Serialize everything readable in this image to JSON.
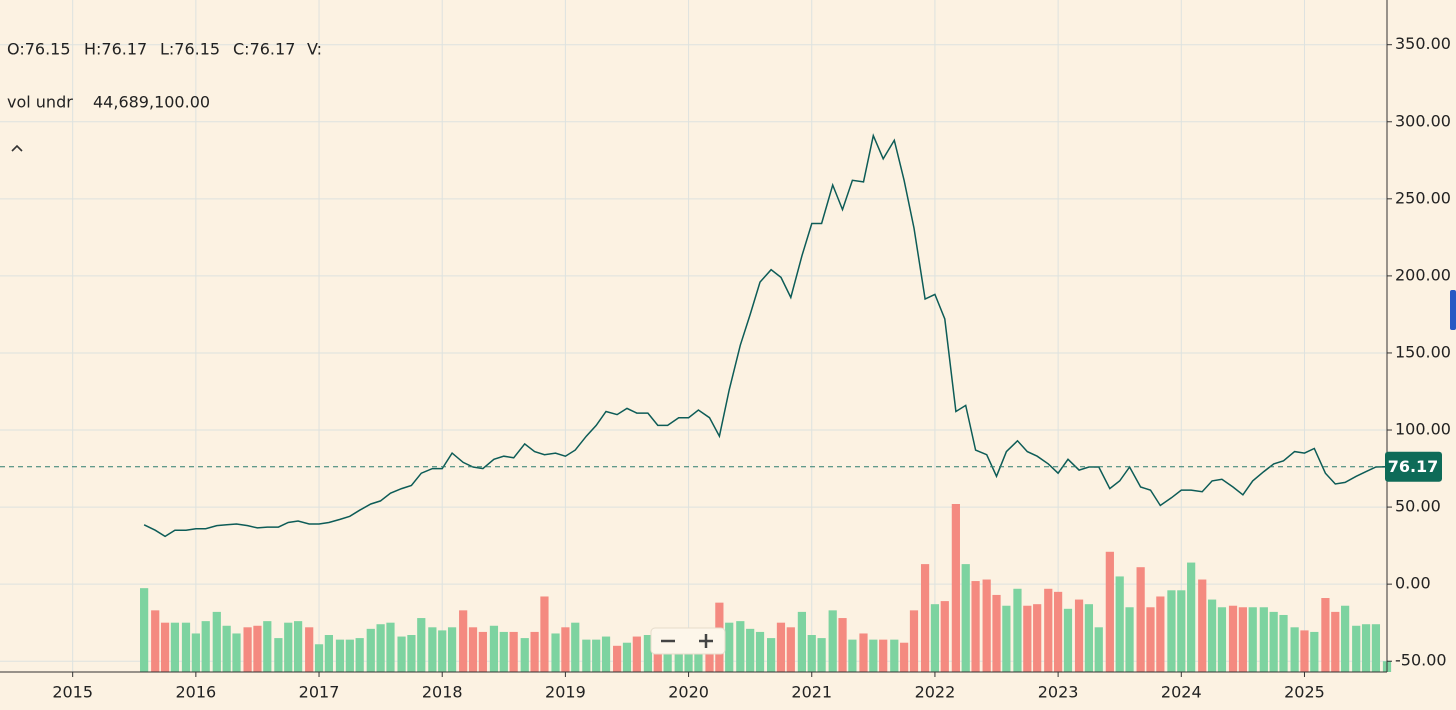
{
  "chart_data": {
    "type": "line",
    "ohlc_labels": [
      "O:76.15",
      "H:76.17",
      "L:76.15",
      "C:76.17",
      "V:"
    ],
    "volume_label": "vol undr",
    "volume_value": "44,689,100.00",
    "last_price": 76.17,
    "grid": true,
    "xlim": [
      2014.41,
      2025.67
    ],
    "xticks": [
      2015,
      2016,
      2017,
      2018,
      2019,
      2020,
      2021,
      2022,
      2023,
      2024,
      2025
    ],
    "ylim": [
      -57,
      379
    ],
    "yticks": [
      {
        "value": -50,
        "label": "-50.00"
      },
      {
        "value": 0,
        "label": "0.00"
      },
      {
        "value": 50,
        "label": "50.00"
      },
      {
        "value": 100,
        "label": "100.00"
      },
      {
        "value": 150,
        "label": "150.00"
      },
      {
        "value": 200,
        "label": "200.00"
      },
      {
        "value": 250,
        "label": "250.00"
      },
      {
        "value": 300,
        "label": "300.00"
      },
      {
        "value": 350,
        "label": "350.00"
      }
    ],
    "x": [
      2015.58,
      2015.67,
      2015.75,
      2015.83,
      2015.92,
      2016.0,
      2016.08,
      2016.17,
      2016.25,
      2016.33,
      2016.42,
      2016.5,
      2016.58,
      2016.67,
      2016.75,
      2016.83,
      2016.92,
      2017.0,
      2017.08,
      2017.17,
      2017.25,
      2017.33,
      2017.42,
      2017.5,
      2017.58,
      2017.67,
      2017.75,
      2017.83,
      2017.92,
      2018.0,
      2018.08,
      2018.17,
      2018.25,
      2018.33,
      2018.42,
      2018.5,
      2018.58,
      2018.67,
      2018.75,
      2018.83,
      2018.92,
      2019.0,
      2019.08,
      2019.17,
      2019.25,
      2019.33,
      2019.42,
      2019.5,
      2019.58,
      2019.67,
      2019.75,
      2019.83,
      2019.92,
      2020.0,
      2020.08,
      2020.17,
      2020.25,
      2020.33,
      2020.42,
      2020.5,
      2020.58,
      2020.67,
      2020.75,
      2020.83,
      2020.92,
      2021.0,
      2021.08,
      2021.17,
      2021.25,
      2021.33,
      2021.42,
      2021.5,
      2021.58,
      2021.67,
      2021.75,
      2021.83,
      2021.92,
      2022.0,
      2022.08,
      2022.17,
      2022.25,
      2022.33,
      2022.42,
      2022.5,
      2022.58,
      2022.67,
      2022.75,
      2022.83,
      2022.92,
      2023.0,
      2023.08,
      2023.17,
      2023.25,
      2023.33,
      2023.42,
      2023.5,
      2023.58,
      2023.67,
      2023.75,
      2023.83,
      2023.92,
      2024.0,
      2024.08,
      2024.17,
      2024.25,
      2024.33,
      2024.42,
      2024.5,
      2024.58,
      2024.67,
      2024.75,
      2024.83,
      2024.92,
      2025.0,
      2025.08,
      2025.17,
      2025.25,
      2025.33,
      2025.42,
      2025.5,
      2025.58,
      2025.67
    ],
    "series": [
      {
        "color": "#0d5c57",
        "values": [
          38.5,
          35,
          31,
          35,
          35,
          36,
          36,
          38,
          38.5,
          39,
          38,
          36.5,
          37,
          37,
          40,
          41,
          39,
          39,
          40,
          42,
          44,
          48,
          52,
          54,
          59,
          62,
          64,
          72,
          75,
          75,
          85,
          79,
          76,
          75,
          81,
          83,
          82,
          91,
          86,
          84,
          85,
          83,
          87,
          96,
          103,
          112,
          110,
          114,
          111,
          111,
          103,
          103,
          108,
          108,
          113,
          108,
          96,
          126,
          155,
          175,
          196,
          204,
          199,
          186,
          213,
          234,
          234,
          259,
          243,
          262,
          261,
          291,
          276,
          288,
          262,
          231,
          185,
          188,
          172,
          112,
          116,
          87,
          84,
          70,
          86,
          93,
          86,
          83,
          78,
          72,
          81,
          74,
          76,
          76,
          62,
          67,
          76,
          63,
          61,
          51,
          56,
          61,
          61,
          60,
          67,
          68,
          63,
          58,
          67,
          73,
          78,
          80,
          86,
          85,
          88,
          72,
          65,
          66,
          70,
          73,
          76,
          76.17
        ]
      },
      {
        "type": "bar",
        "up_color": "#7dd3a0",
        "down_color": "#f48a80",
        "values": [
          -2.6,
          -17,
          -25,
          -25,
          -25,
          -32,
          -24,
          -18,
          -27,
          -32,
          -28,
          -27,
          -24,
          -35,
          -25,
          -24,
          -28,
          -39,
          -33,
          -36,
          -36,
          -35,
          -29,
          -26,
          -25,
          -34,
          -33,
          -22,
          -28,
          -30,
          -28,
          -17,
          -28,
          -31,
          -27,
          -31,
          -31,
          -35,
          -31,
          -8,
          -32,
          -28,
          -25,
          -36,
          -36,
          -34,
          -40,
          -38,
          -34,
          -33,
          -35,
          -43,
          -43,
          -43,
          -40,
          -43,
          -12,
          -25,
          -24,
          -29,
          -31,
          -35,
          -25,
          -28,
          -18,
          -33,
          -35,
          -17,
          -22,
          -36,
          -32,
          -36,
          -36,
          -36,
          -38,
          -17,
          13,
          -13,
          -11,
          52,
          13,
          2,
          3,
          -7,
          -14,
          -3,
          -14,
          -13,
          -3,
          -5,
          -16,
          -10,
          -13,
          -28,
          21,
          5,
          -15,
          11,
          -15,
          -8,
          -4,
          -4,
          14,
          3,
          -10,
          -15,
          -14,
          -15,
          -15,
          -15,
          -18,
          -20,
          -28,
          -30,
          -31,
          -9,
          -18,
          -14,
          -27,
          -26,
          -26,
          -50
        ]
      }
    ]
  }
}
